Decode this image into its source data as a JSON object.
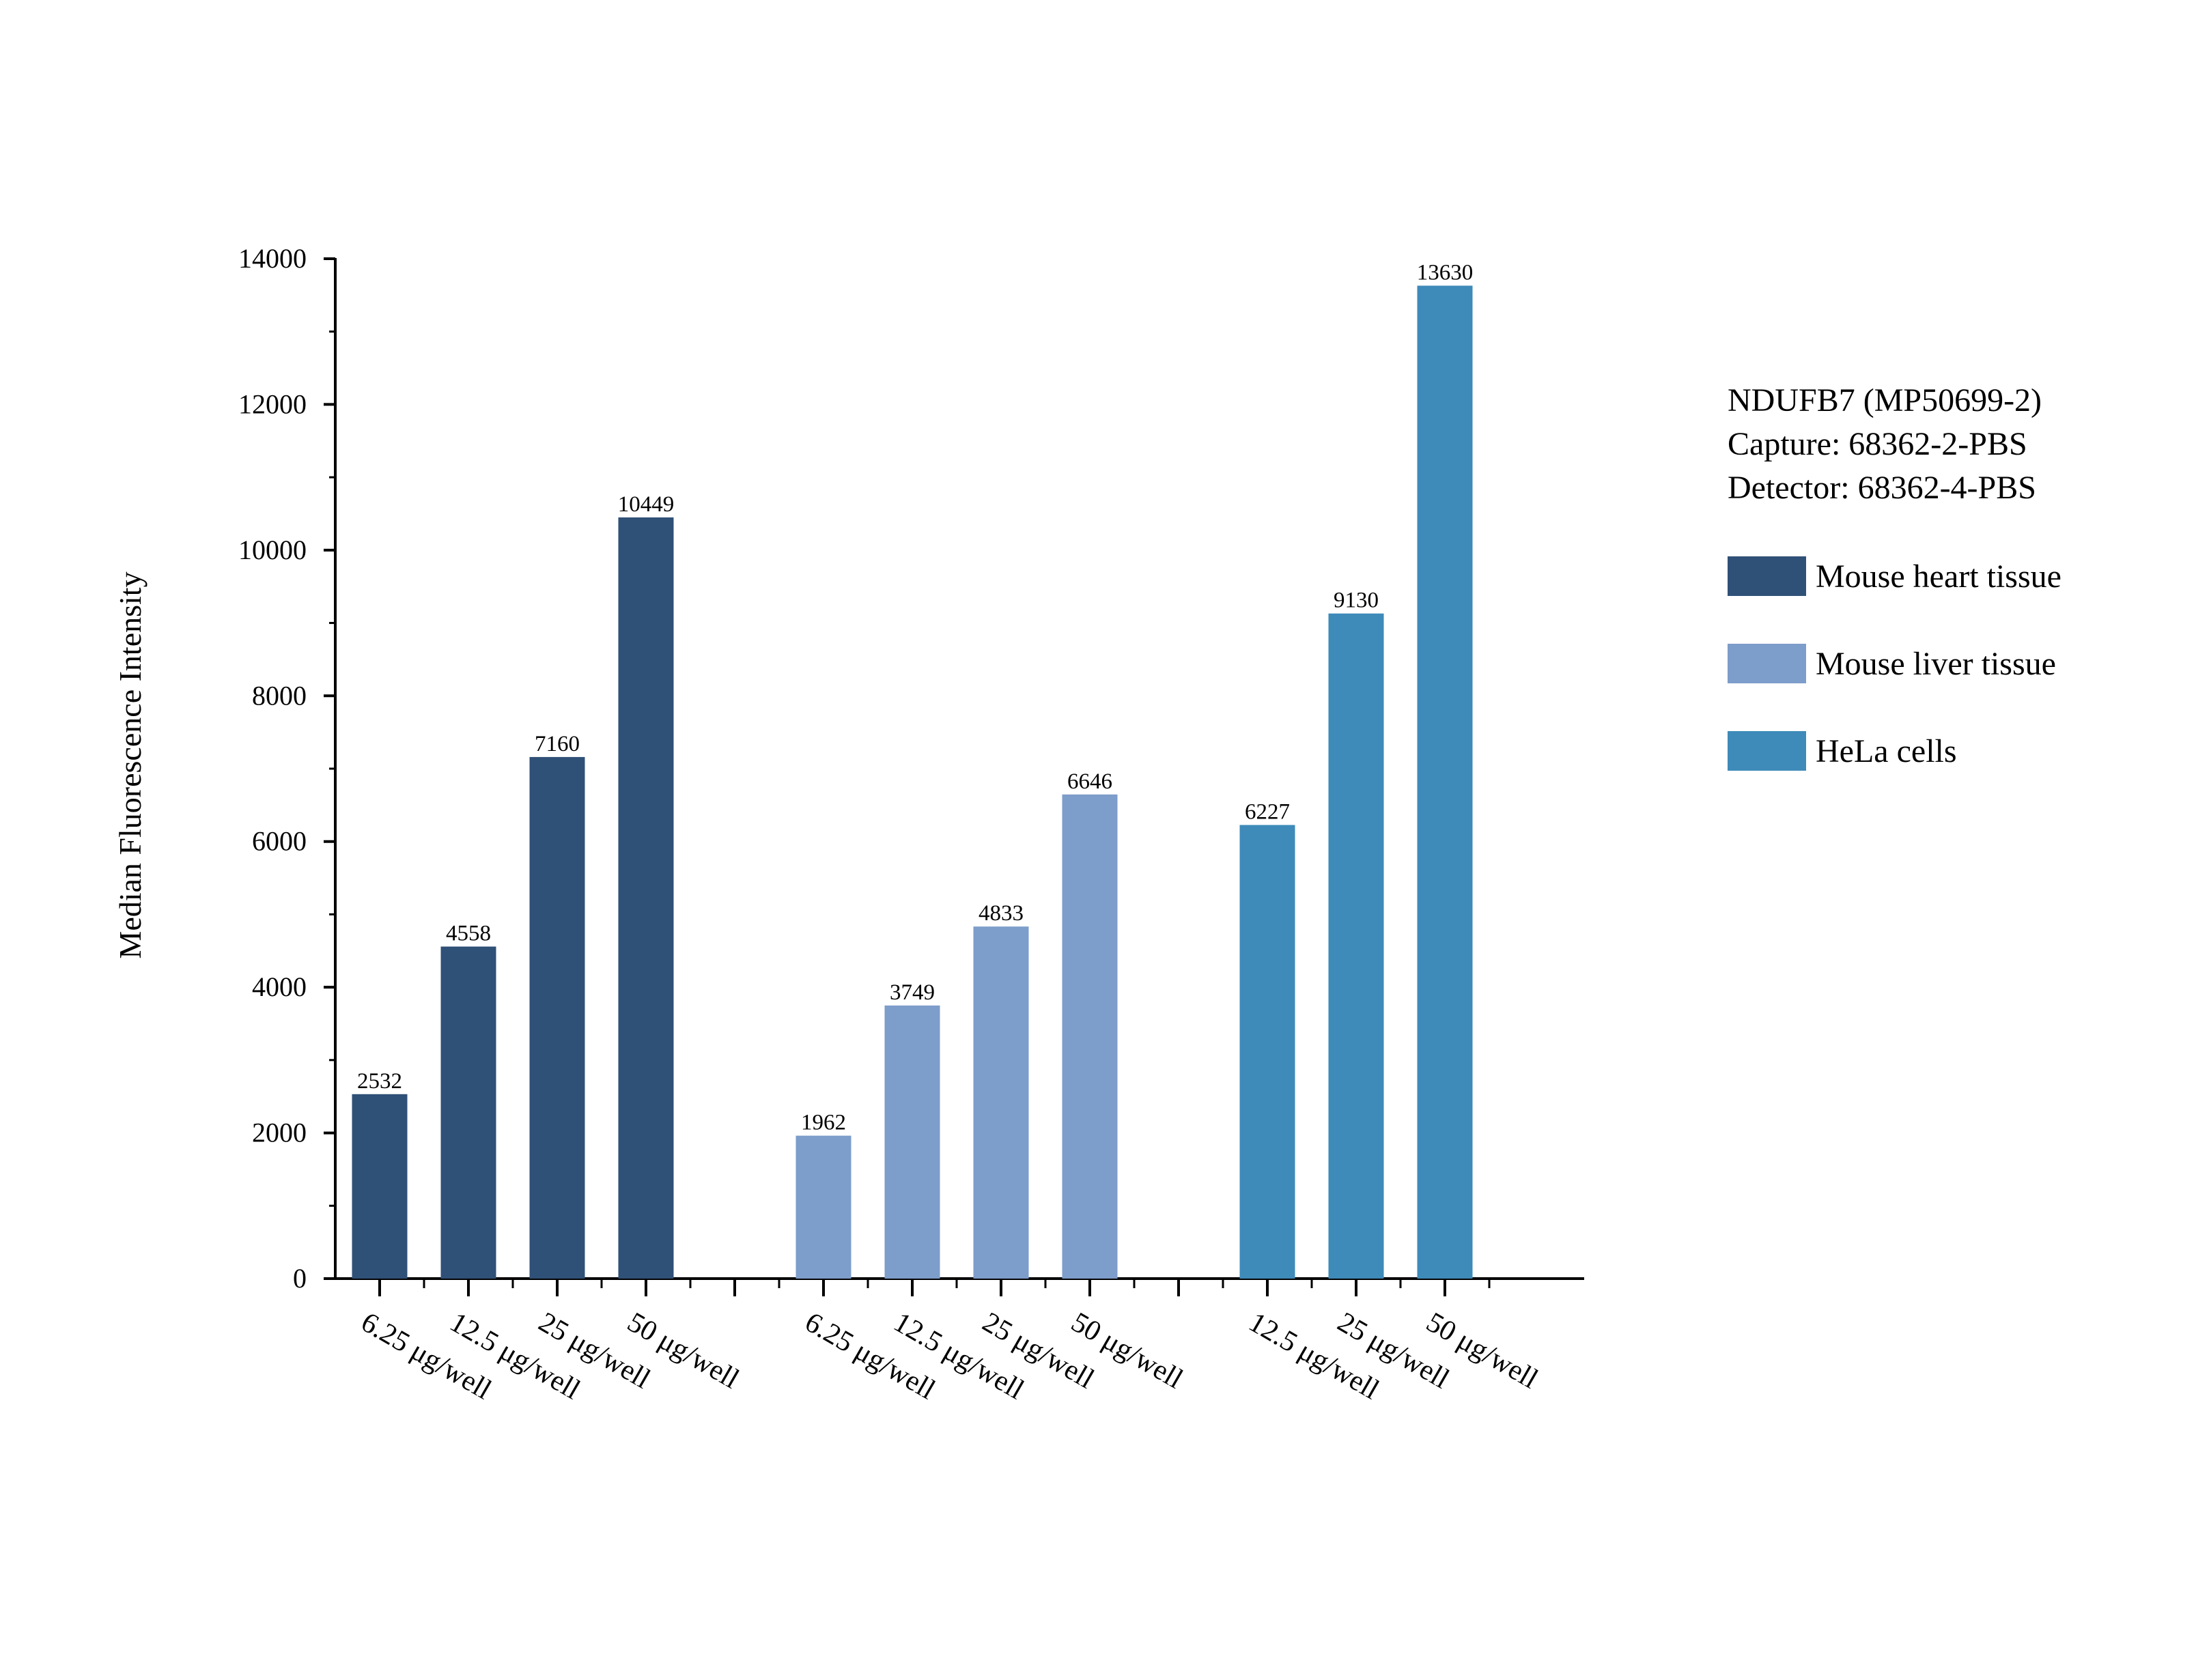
{
  "chart_data": {
    "type": "bar",
    "title": "NDUFB7 (MP50699-2)",
    "subtitle_lines": [
      "Capture: 68362-2-PBS",
      "Detector: 68362-4-PBS"
    ],
    "ylabel": "Median Fluorescence Intensity",
    "xlabel": "",
    "ylim": [
      0,
      14000
    ],
    "yticks": [
      0,
      2000,
      4000,
      6000,
      8000,
      10000,
      12000,
      14000
    ],
    "ytick_labels": [
      "0",
      "2000",
      "4000",
      "6000",
      "8000",
      "10000",
      "12000",
      "14000"
    ],
    "legend_position": "right",
    "series": [
      {
        "name": "Mouse heart tissue",
        "color": "#2f5077",
        "categories": [
          "6.25 μg/well",
          "12.5 μg/well",
          "25 μg/well",
          "50 μg/well"
        ],
        "values": [
          2532,
          4558,
          7160,
          10449
        ]
      },
      {
        "name": "Mouse liver tissue",
        "color": "#7d9dca",
        "categories": [
          "6.25 μg/well",
          "12.5 μg/well",
          "25 μg/well",
          "50 μg/well"
        ],
        "values": [
          1962,
          3749,
          4833,
          6646
        ]
      },
      {
        "name": "HeLa cells",
        "color": "#3e8ab9",
        "categories": [
          "12.5 μg/well",
          "25 μg/well",
          "50 μg/well"
        ],
        "values": [
          6227,
          9130,
          13630
        ]
      }
    ]
  }
}
